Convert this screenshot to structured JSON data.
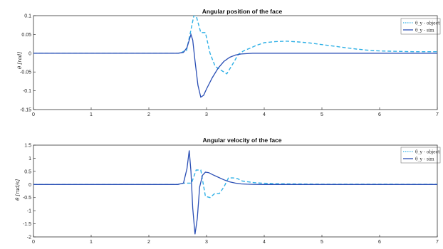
{
  "colors": {
    "object": "#2fb0e6",
    "sim": "#2b4fb5",
    "axis": "#333333",
    "background": "#ffffff"
  },
  "chart_data": [
    {
      "type": "line",
      "title": "Angular position of the face",
      "xlabel": "",
      "ylabel": "θ [rad]",
      "xlim": [
        0,
        7
      ],
      "ylim": [
        -0.15,
        0.1
      ],
      "xticks": [
        0,
        1,
        2,
        3,
        4,
        5,
        6,
        7
      ],
      "yticks": [
        -0.15,
        -0.1,
        -0.05,
        0,
        0.05,
        0.1
      ],
      "ytick_labels": [
        "-0.15",
        "-0.1",
        "-0.05",
        "0",
        "0.05",
        "0.1"
      ],
      "grid": false,
      "legend_position": "top-right",
      "legend": [
        "θ_y - object",
        "θ_y - sim"
      ],
      "series": [
        {
          "name": "θ_y - object",
          "style": "dashed",
          "x": [
            0,
            0.5,
            1.0,
            1.5,
            2.0,
            2.5,
            2.55,
            2.6,
            2.65,
            2.72,
            2.78,
            2.82,
            2.9,
            2.98,
            3.06,
            3.15,
            3.25,
            3.35,
            3.45,
            3.55,
            3.65,
            3.75,
            3.85,
            4.0,
            4.2,
            4.4,
            4.6,
            4.8,
            5.0,
            5.2,
            5.4,
            5.6,
            5.8,
            6.0,
            6.3,
            6.6,
            7.0
          ],
          "y": [
            0,
            0,
            0,
            0,
            0,
            0,
            0,
            0.005,
            0.005,
            0.055,
            0.1,
            0.1,
            0.055,
            0.055,
            0,
            -0.035,
            -0.045,
            -0.055,
            -0.03,
            -0.003,
            0.007,
            0.013,
            0.02,
            0.028,
            0.031,
            0.032,
            0.03,
            0.027,
            0.023,
            0.019,
            0.015,
            0.011,
            0.008,
            0.006,
            0.005,
            0.004,
            0.004
          ]
        },
        {
          "name": "θ_y - sim",
          "style": "solid",
          "x": [
            0,
            1.0,
            2.0,
            2.5,
            2.6,
            2.66,
            2.7,
            2.73,
            2.76,
            2.8,
            2.85,
            2.9,
            2.95,
            3.0,
            3.1,
            3.2,
            3.3,
            3.4,
            3.5,
            3.6,
            3.8,
            4.0,
            5.0,
            6.0,
            7.0
          ],
          "y": [
            0,
            0,
            0,
            0,
            0.002,
            0.015,
            0.035,
            0.05,
            0.035,
            -0.02,
            -0.085,
            -0.117,
            -0.112,
            -0.095,
            -0.065,
            -0.04,
            -0.022,
            -0.011,
            -0.005,
            -0.002,
            0,
            0,
            0,
            0,
            0
          ]
        }
      ]
    },
    {
      "type": "line",
      "title": "Angular velocity of the face",
      "xlabel": "",
      "ylabel": "θ̇ [rad/s]",
      "xlim": [
        0,
        7
      ],
      "ylim": [
        -2,
        1.5
      ],
      "xticks": [
        0,
        1,
        2,
        3,
        4,
        5,
        6,
        7
      ],
      "yticks": [
        -2,
        -1.5,
        -1,
        -0.5,
        0,
        0.5,
        1,
        1.5
      ],
      "ytick_labels": [
        "-2",
        "-1.5",
        "-1",
        "-0.5",
        "0",
        "0.5",
        "1",
        "1.5"
      ],
      "grid": false,
      "legend_position": "top-right",
      "legend": [
        "θ̇_y - object",
        "θ̇_y - sim"
      ],
      "series": [
        {
          "name": "θ̇_y - object",
          "style": "dashed",
          "x": [
            0,
            0.5,
            1.0,
            1.5,
            2.0,
            2.5,
            2.6,
            2.68,
            2.74,
            2.82,
            2.9,
            2.98,
            3.06,
            3.14,
            3.22,
            3.3,
            3.38,
            3.46,
            3.54,
            3.62,
            3.72,
            3.82,
            3.95,
            4.2,
            4.5,
            5.0,
            5.5,
            6.0,
            6.5,
            7.0
          ],
          "y": [
            0,
            0,
            0,
            0,
            0,
            0,
            0.05,
            0.05,
            0.05,
            0.55,
            0.55,
            -0.45,
            -0.5,
            -0.35,
            -0.35,
            -0.1,
            0.25,
            0.25,
            0.22,
            0.13,
            0.1,
            0.07,
            0.05,
            0.03,
            0.02,
            0.01,
            0.01,
            0.01,
            0.005,
            0.005
          ]
        },
        {
          "name": "θ̇_y - sim",
          "style": "solid",
          "x": [
            0,
            1.0,
            2.0,
            2.5,
            2.6,
            2.66,
            2.7,
            2.73,
            2.76,
            2.8,
            2.84,
            2.88,
            2.93,
            2.98,
            3.04,
            3.1,
            3.2,
            3.3,
            3.4,
            3.5,
            3.6,
            3.7,
            3.8,
            4.0,
            4.5,
            5.0,
            6.0,
            7.0
          ],
          "y": [
            0,
            0,
            0,
            0,
            0.05,
            0.6,
            1.3,
            0.5,
            -0.9,
            -1.9,
            -1.3,
            -0.1,
            0.35,
            0.47,
            0.45,
            0.38,
            0.28,
            0.18,
            0.1,
            0.05,
            0.02,
            0.01,
            0.005,
            0,
            0,
            0,
            0,
            0
          ]
        }
      ]
    }
  ]
}
